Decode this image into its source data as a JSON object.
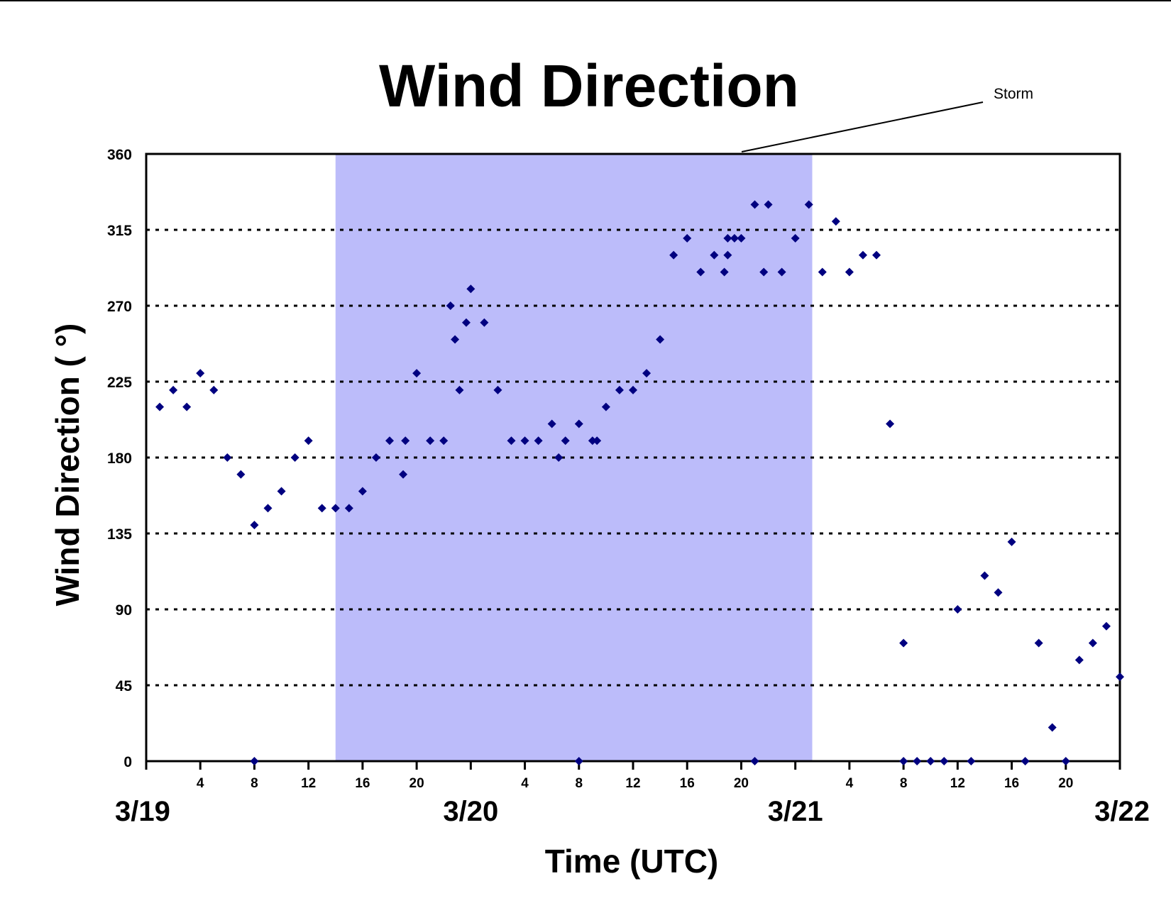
{
  "chart_data": {
    "type": "scatter",
    "title": "Wind Direction",
    "xlabel": "Time (UTC)",
    "ylabel": "Wind Direction ( °)",
    "ylim": [
      0,
      360
    ],
    "y_ticks": [
      0,
      45,
      90,
      135,
      180,
      225,
      270,
      315,
      360
    ],
    "xlim": [
      "3/19 00:00",
      "3/22 00:00"
    ],
    "x_hour_ticks": [
      "4",
      "8",
      "12",
      "16",
      "20",
      "4",
      "8",
      "12",
      "16",
      "20",
      "4",
      "8",
      "12",
      "16",
      "20"
    ],
    "x_day_ticks": [
      "3/19",
      "3/20",
      "3/21",
      "3/22"
    ],
    "grid": "horizontal dotted",
    "highlight": {
      "label": "Storm",
      "start": "3/19 14:00",
      "end": "3/21 01:15",
      "color": "#bcbcfa"
    },
    "marker_color": "#000080",
    "series": [
      {
        "points": [
          [
            "3/19 01:00",
            210
          ],
          [
            "3/19 02:00",
            220
          ],
          [
            "3/19 03:00",
            210
          ],
          [
            "3/19 04:00",
            230
          ],
          [
            "3/19 05:00",
            220
          ],
          [
            "3/19 06:00",
            180
          ],
          [
            "3/19 07:00",
            170
          ],
          [
            "3/19 08:00",
            140
          ],
          [
            "3/19 08:00",
            0
          ],
          [
            "3/19 09:00",
            150
          ],
          [
            "3/19 10:00",
            160
          ],
          [
            "3/19 11:00",
            180
          ],
          [
            "3/19 12:00",
            190
          ],
          [
            "3/19 13:00",
            150
          ],
          [
            "3/19 14:00",
            150
          ],
          [
            "3/19 15:00",
            150
          ],
          [
            "3/19 16:00",
            160
          ],
          [
            "3/19 17:00",
            180
          ],
          [
            "3/19 18:00",
            190
          ],
          [
            "3/19 19:00",
            170
          ],
          [
            "3/19 19:10",
            190
          ],
          [
            "3/19 20:00",
            230
          ],
          [
            "3/19 21:00",
            190
          ],
          [
            "3/19 22:00",
            190
          ],
          [
            "3/19 22:30",
            270
          ],
          [
            "3/19 22:50",
            250
          ],
          [
            "3/19 23:10",
            220
          ],
          [
            "3/19 23:40",
            260
          ],
          [
            "3/20 00:00",
            280
          ],
          [
            "3/20 01:00",
            260
          ],
          [
            "3/20 02:00",
            220
          ],
          [
            "3/20 03:00",
            190
          ],
          [
            "3/20 04:00",
            190
          ],
          [
            "3/20 05:00",
            190
          ],
          [
            "3/20 06:00",
            200
          ],
          [
            "3/20 06:30",
            180
          ],
          [
            "3/20 07:00",
            190
          ],
          [
            "3/20 08:00",
            200
          ],
          [
            "3/20 08:00",
            0
          ],
          [
            "3/20 09:00",
            190
          ],
          [
            "3/20 09:20",
            190
          ],
          [
            "3/20 10:00",
            210
          ],
          [
            "3/20 11:00",
            220
          ],
          [
            "3/20 12:00",
            220
          ],
          [
            "3/20 13:00",
            230
          ],
          [
            "3/20 14:00",
            250
          ],
          [
            "3/20 15:00",
            300
          ],
          [
            "3/20 16:00",
            310
          ],
          [
            "3/20 17:00",
            290
          ],
          [
            "3/20 18:00",
            300
          ],
          [
            "3/20 18:45",
            290
          ],
          [
            "3/20 19:00",
            300
          ],
          [
            "3/20 19:00",
            310
          ],
          [
            "3/20 19:30",
            310
          ],
          [
            "3/20 20:00",
            310
          ],
          [
            "3/20 21:00",
            330
          ],
          [
            "3/20 21:00",
            0
          ],
          [
            "3/20 21:40",
            290
          ],
          [
            "3/20 22:00",
            330
          ],
          [
            "3/20 23:00",
            290
          ],
          [
            "3/21 00:00",
            310
          ],
          [
            "3/21 01:00",
            330
          ],
          [
            "3/21 02:00",
            290
          ],
          [
            "3/21 03:00",
            320
          ],
          [
            "3/21 04:00",
            290
          ],
          [
            "3/21 05:00",
            300
          ],
          [
            "3/21 06:00",
            300
          ],
          [
            "3/21 07:00",
            200
          ],
          [
            "3/21 08:00",
            70
          ],
          [
            "3/21 08:00",
            0
          ],
          [
            "3/21 09:00",
            0
          ],
          [
            "3/21 10:00",
            0
          ],
          [
            "3/21 11:00",
            0
          ],
          [
            "3/21 12:00",
            90
          ],
          [
            "3/21 13:00",
            0
          ],
          [
            "3/21 14:00",
            110
          ],
          [
            "3/21 15:00",
            100
          ],
          [
            "3/21 16:00",
            130
          ],
          [
            "3/21 17:00",
            0
          ],
          [
            "3/21 18:00",
            70
          ],
          [
            "3/21 19:00",
            20
          ],
          [
            "3/21 20:00",
            0
          ],
          [
            "3/21 21:00",
            60
          ],
          [
            "3/21 22:00",
            70
          ],
          [
            "3/21 23:00",
            80
          ],
          [
            "3/22 00:00",
            50
          ]
        ]
      }
    ]
  }
}
